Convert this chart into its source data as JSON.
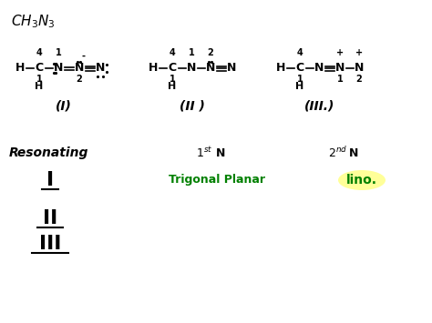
{
  "background_color": "#ffffff",
  "fig_width": 4.74,
  "fig_height": 3.55,
  "dpi": 100,
  "title_text": "CH₃N₃",
  "struct1_label": "(I)",
  "struct2_label": "(II )",
  "struct3_label": "(III.)",
  "resonating_text": "Resonating",
  "first_n_text": "1st N",
  "second_n_text": "2nd N",
  "trigonal_text": "Trigonal Planar",
  "linear_text": "lino.",
  "green_color": "#008000",
  "yellow_highlight": "#ffff99"
}
